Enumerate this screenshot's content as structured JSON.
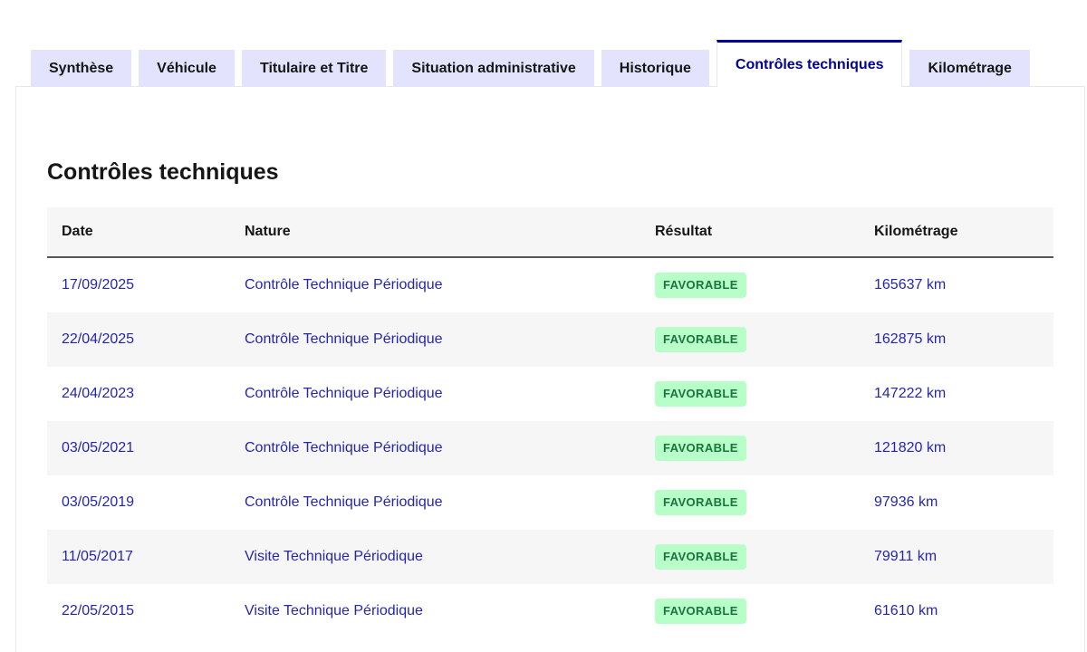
{
  "tabs": [
    {
      "label": "Synthèse",
      "active": false
    },
    {
      "label": "Véhicule",
      "active": false
    },
    {
      "label": "Titulaire et Titre",
      "active": false
    },
    {
      "label": "Situation administrative",
      "active": false
    },
    {
      "label": "Historique",
      "active": false
    },
    {
      "label": "Contrôles techniques",
      "active": true
    },
    {
      "label": "Kilométrage",
      "active": false
    }
  ],
  "section": {
    "title": "Contrôles techniques"
  },
  "table": {
    "columns": [
      "Date",
      "Nature",
      "Résultat",
      "Kilométrage"
    ],
    "rows": [
      {
        "date": "17/09/2025",
        "nature": "Contrôle Technique Périodique",
        "result": "FAVORABLE",
        "km": "165637 km"
      },
      {
        "date": "22/04/2025",
        "nature": "Contrôle Technique Périodique",
        "result": "FAVORABLE",
        "km": "162875 km"
      },
      {
        "date": "24/04/2023",
        "nature": "Contrôle Technique Périodique",
        "result": "FAVORABLE",
        "km": "147222 km"
      },
      {
        "date": "03/05/2021",
        "nature": "Contrôle Technique Périodique",
        "result": "FAVORABLE",
        "km": "121820 km"
      },
      {
        "date": "03/05/2019",
        "nature": "Contrôle Technique Périodique",
        "result": "FAVORABLE",
        "km": "97936 km"
      },
      {
        "date": "11/05/2017",
        "nature": "Visite Technique Périodique",
        "result": "FAVORABLE",
        "km": "79911 km"
      },
      {
        "date": "22/05/2015",
        "nature": "Visite Technique Périodique",
        "result": "FAVORABLE",
        "km": "61610 km"
      }
    ]
  },
  "colors": {
    "accent_blue": "#000091",
    "tab_inactive_bg": "#e3e3fd",
    "row_alt_bg": "#f6f6f6",
    "badge_success_bg": "#b8fec9",
    "badge_success_text": "#18753c",
    "data_text_blue": "#2525b1",
    "heading_text": "#161616"
  }
}
